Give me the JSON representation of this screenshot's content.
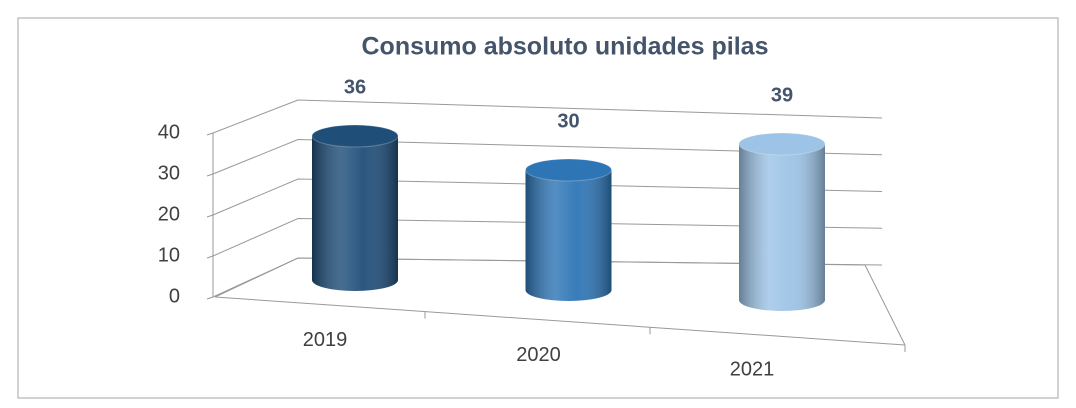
{
  "chart_data": {
    "type": "bar3d",
    "title": "Consumo absoluto unidades pilas",
    "categories": [
      "2019",
      "2020",
      "2021"
    ],
    "values": [
      36,
      30,
      39
    ],
    "colors": [
      "#1f4e79",
      "#2e75b6",
      "#9dc3e6"
    ],
    "ylim": [
      0,
      40
    ],
    "yticks": [
      0,
      10,
      20,
      30,
      40
    ],
    "grid": true
  }
}
